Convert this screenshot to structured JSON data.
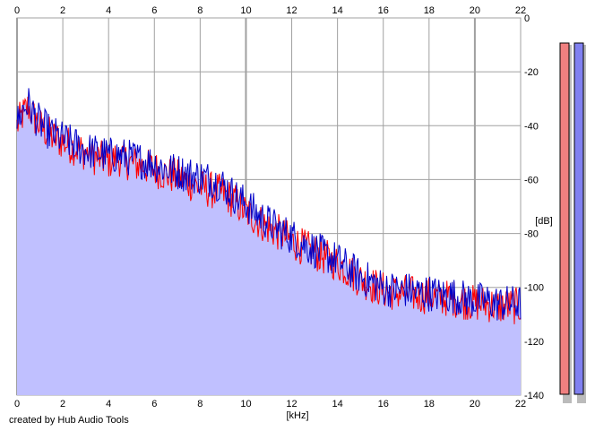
{
  "credit": "created by Hub Audio Tools",
  "chart_data": {
    "type": "area",
    "xlabel": "[kHz]",
    "ylabel": "[dB]",
    "xlim": [
      0,
      22
    ],
    "ylim": [
      -140,
      0
    ],
    "x_ticks": [
      0,
      2,
      4,
      6,
      8,
      10,
      12,
      14,
      16,
      18,
      20,
      22
    ],
    "y_ticks": [
      0,
      -20,
      -40,
      -60,
      -80,
      -100,
      -120,
      -140
    ],
    "grid": true,
    "series": [
      {
        "color": "#ff0000",
        "x": [
          0,
          0.25,
          0.5,
          0.75,
          1,
          1.5,
          2,
          2.5,
          3,
          3.5,
          4,
          4.5,
          5,
          5.5,
          6,
          6.5,
          7,
          7.5,
          8,
          8.5,
          9,
          9.5,
          10,
          10.5,
          11,
          11.5,
          12,
          12.5,
          13,
          13.5,
          14,
          14.5,
          15,
          15.5,
          16,
          16.5,
          17,
          17.5,
          18,
          18.5,
          19,
          19.5,
          20,
          20.5,
          21,
          21.5,
          22
        ],
        "y": [
          -40,
          -36,
          -33,
          -37,
          -40,
          -44,
          -46,
          -48,
          -50,
          -52,
          -53,
          -52,
          -54,
          -55,
          -56,
          -58,
          -59,
          -61,
          -63,
          -64,
          -65,
          -68,
          -72,
          -75,
          -78,
          -80,
          -83,
          -85,
          -87,
          -89,
          -91,
          -94,
          -97,
          -99,
          -101,
          -102,
          -102,
          -103,
          -103,
          -104,
          -104,
          -105,
          -106,
          -106,
          -107,
          -107,
          -107
        ]
      },
      {
        "color": "#0000c8",
        "x": [
          0,
          0.25,
          0.5,
          0.75,
          1,
          1.5,
          2,
          2.5,
          3,
          3.5,
          4,
          4.5,
          5,
          5.5,
          6,
          6.5,
          7,
          7.5,
          8,
          8.5,
          9,
          9.5,
          10,
          10.5,
          11,
          11.5,
          12,
          12.5,
          13,
          13.5,
          14,
          14.5,
          15,
          15.5,
          16,
          16.5,
          17,
          17.5,
          18,
          18.5,
          19,
          19.5,
          20,
          20.5,
          21,
          21.5,
          22
        ],
        "y": [
          -39,
          -34,
          -32,
          -36,
          -39,
          -43,
          -45,
          -47,
          -49,
          -50,
          -51,
          -51,
          -52,
          -53,
          -54,
          -56,
          -57,
          -58,
          -59,
          -60,
          -62,
          -66,
          -69,
          -73,
          -76,
          -79,
          -81,
          -84,
          -86,
          -88,
          -90,
          -93,
          -96,
          -98,
          -100,
          -101,
          -101,
          -102,
          -102,
          -103,
          -103,
          -104,
          -105,
          -105,
          -106,
          -106,
          -106
        ]
      }
    ],
    "fill_color": "#c0c0ff",
    "level_meters": [
      {
        "color": "#f08080",
        "level_db": 0
      },
      {
        "color": "#8080f0",
        "level_db": 0
      }
    ]
  }
}
